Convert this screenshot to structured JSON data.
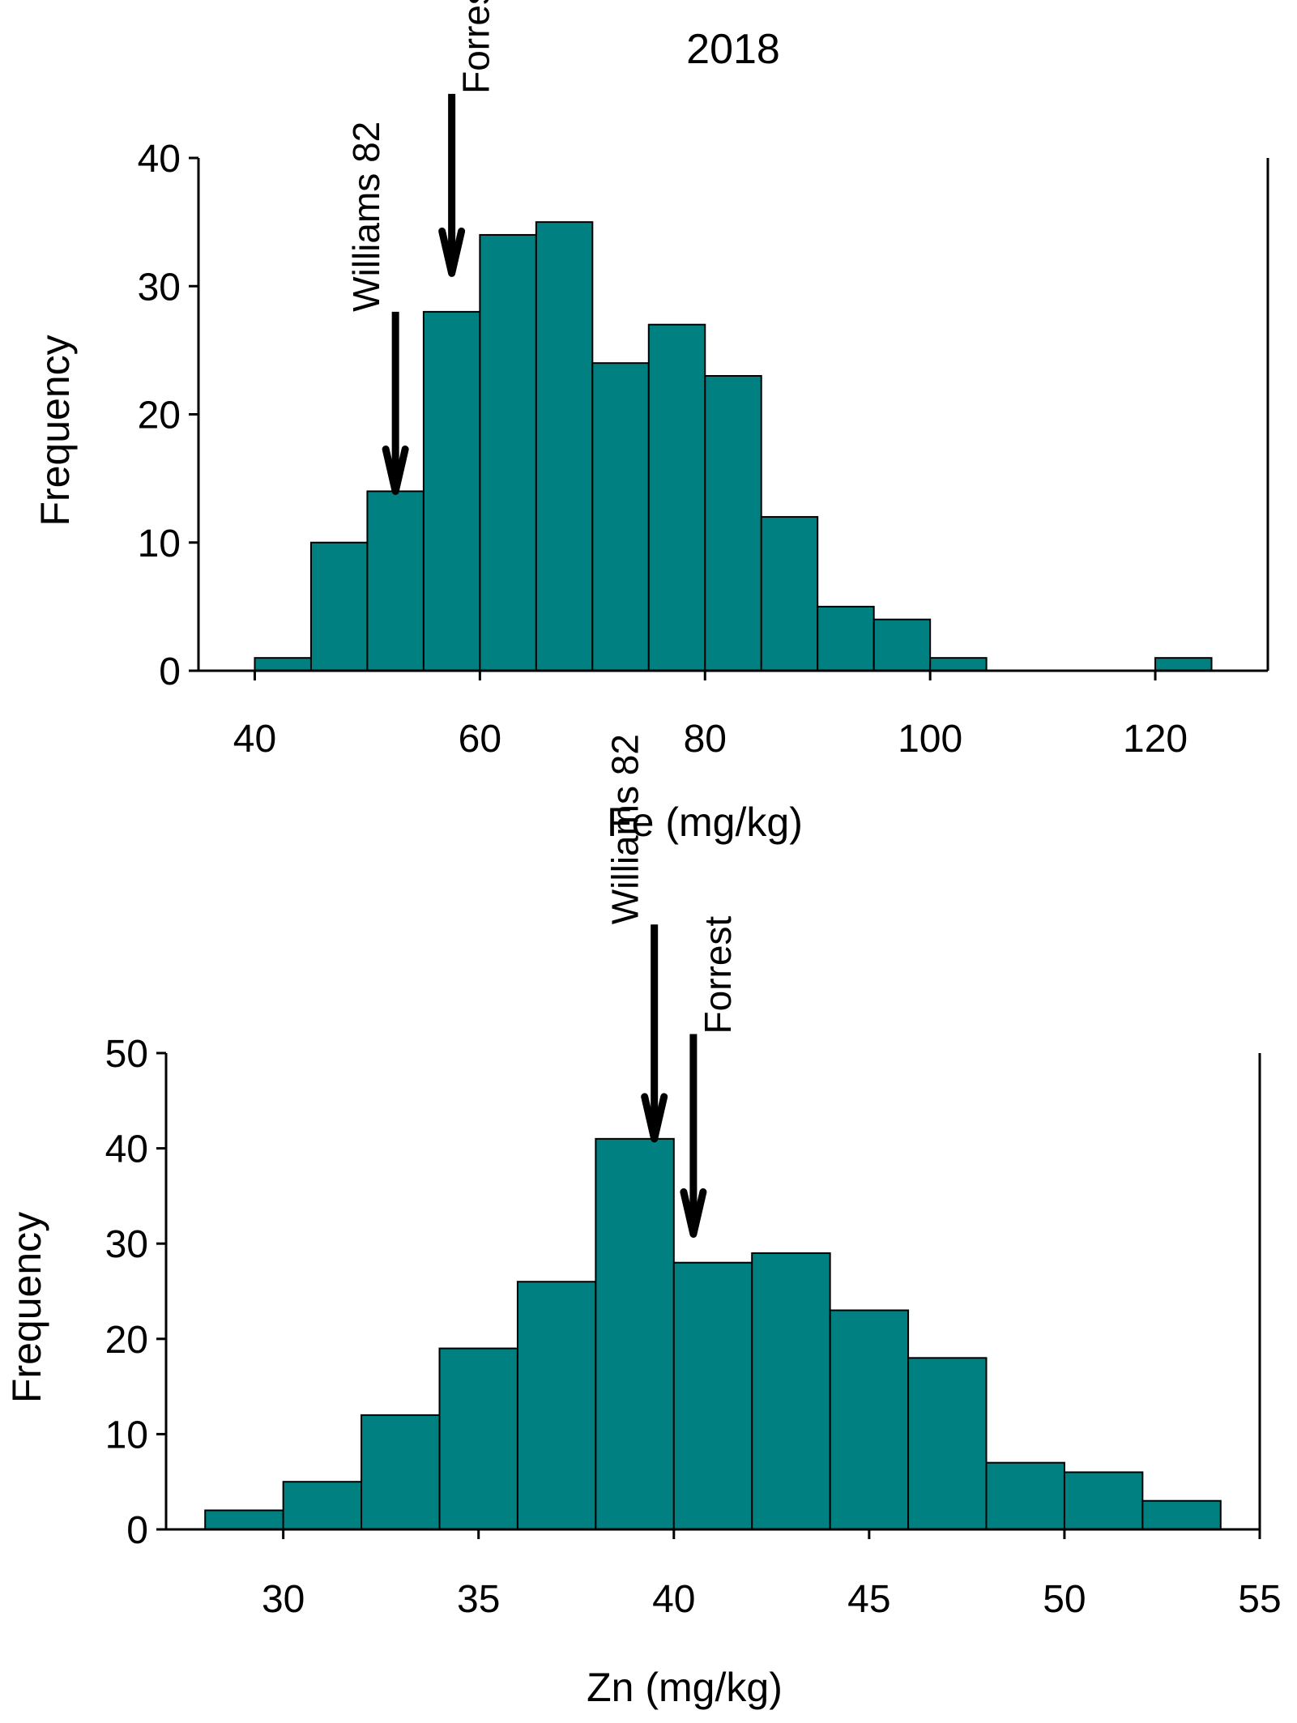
{
  "title": "2018",
  "chart_data": [
    {
      "type": "bar",
      "name": "fe-histogram",
      "xlabel": "Fe  (mg/kg)",
      "ylabel": "Frequency",
      "xlim": [
        35,
        130
      ],
      "ylim": [
        0,
        40
      ],
      "bin_edges": [
        40,
        45,
        50,
        55,
        60,
        65,
        70,
        75,
        80,
        85,
        90,
        95,
        100,
        105,
        110,
        115,
        120,
        125
      ],
      "values": [
        1,
        10,
        14,
        28,
        34,
        35,
        24,
        27,
        23,
        12,
        5,
        4,
        1,
        0,
        0,
        0,
        1
      ],
      "xticks": [
        40,
        60,
        80,
        100,
        120
      ],
      "xtick_labels": [
        "40",
        "60",
        "80",
        "100",
        "120"
      ],
      "yticks": [
        0,
        10,
        20,
        30,
        40
      ],
      "ytick_labels": [
        "0",
        "10",
        "20",
        "30",
        "40"
      ],
      "annotations": [
        {
          "label": "Williams 82",
          "x": 52.5,
          "y_tip": 14,
          "y_tail": 28
        },
        {
          "label": "Forrest",
          "x": 57.5,
          "y_tip": 31,
          "y_tail": 45
        }
      ]
    },
    {
      "type": "bar",
      "name": "zn-histogram",
      "xlabel": "Zn (mg/kg)",
      "ylabel": "Frequency",
      "xlim": [
        27,
        55
      ],
      "ylim": [
        0,
        50
      ],
      "bin_edges": [
        28,
        30,
        32,
        34,
        36,
        38,
        40,
        42,
        44,
        46,
        48,
        50,
        52,
        54
      ],
      "values": [
        2,
        5,
        12,
        19,
        26,
        41,
        28,
        29,
        23,
        18,
        7,
        6,
        3
      ],
      "xticks": [
        30,
        35,
        40,
        45,
        50,
        55
      ],
      "xtick_labels": [
        "30",
        "35",
        "40",
        "45",
        "50",
        "55"
      ],
      "yticks": [
        0,
        10,
        20,
        30,
        40,
        50
      ],
      "ytick_labels": [
        "0",
        "10",
        "20",
        "30",
        "40",
        "50"
      ],
      "annotations": [
        {
          "label": "Williams 82",
          "x": 39.5,
          "y_tip": 41,
          "y_tail": 63.5
        },
        {
          "label": "Forrest",
          "x": 40.5,
          "y_tip": 31,
          "y_tail": 52
        }
      ]
    }
  ]
}
